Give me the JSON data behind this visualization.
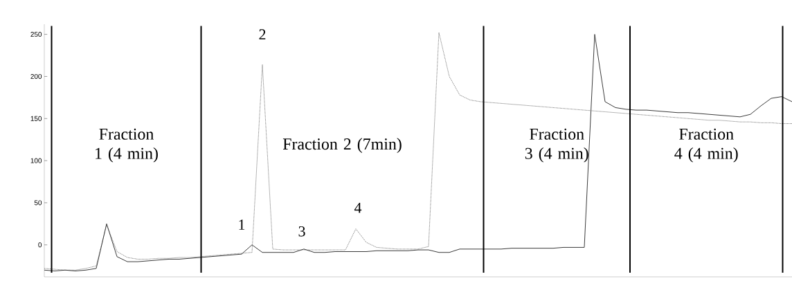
{
  "chart_data": {
    "type": "line",
    "categories": [
      null,
      null,
      null,
      null,
      null,
      null,
      null,
      null,
      null,
      null,
      null,
      null,
      null,
      null,
      null,
      null,
      null,
      null,
      null,
      null,
      null,
      null,
      null,
      null,
      null,
      null,
      null,
      null,
      null,
      null,
      null,
      null,
      null,
      null,
      null,
      null,
      null,
      null,
      null,
      null,
      null,
      null,
      null,
      null,
      null,
      null,
      null,
      null,
      null,
      null,
      null,
      null,
      null,
      null,
      null,
      null,
      null,
      null,
      null,
      null,
      null,
      null,
      null,
      null,
      null,
      null,
      null,
      null,
      null,
      null,
      null,
      null,
      null
    ],
    "series": [
      {
        "color": "#3a3a3a",
        "line_style": "solid",
        "values": [
          -30,
          -31,
          -30,
          -31,
          -30,
          -28,
          25,
          -14,
          -20,
          -20,
          -19,
          -18,
          -17,
          -17,
          -16,
          -15,
          -14,
          -13,
          -12,
          -11,
          0,
          -9,
          -9,
          -9,
          -9,
          -5,
          -9,
          -9,
          -8,
          -8,
          -8,
          -8,
          -7,
          -7,
          -7,
          -7,
          -6,
          -6,
          -9,
          -9,
          -5,
          -5,
          -5,
          -5,
          -5,
          -4,
          -4,
          -4,
          -4,
          -4,
          -3,
          -3,
          -3,
          250,
          170,
          163,
          161,
          160,
          160,
          159,
          158,
          157,
          157,
          156,
          155,
          154,
          153,
          152,
          155,
          165,
          174,
          176,
          170
        ]
      },
      {
        "color": "#6e6e6e",
        "line_style": "dotted",
        "values": [
          -28,
          -29,
          -30,
          -30,
          -28,
          -25,
          24,
          -8,
          -15,
          -17,
          -17,
          -16,
          -16,
          -15,
          -15,
          -14,
          -13,
          -12,
          -11,
          -10,
          -9,
          214,
          -5,
          -6,
          -6,
          -6,
          -6,
          -6,
          -6,
          -6,
          19,
          3,
          -3,
          -4,
          -5,
          -5,
          -5,
          -2,
          252,
          200,
          178,
          172,
          170,
          169,
          168,
          167,
          166,
          165,
          164,
          163,
          162,
          161,
          160,
          159,
          158,
          157,
          156,
          155,
          154,
          153,
          152,
          151,
          150,
          149,
          148,
          148,
          147,
          146,
          146,
          145,
          145,
          144,
          144
        ]
      }
    ],
    "ylim": [
      -38,
      262
    ],
    "yticks": [
      0,
      50,
      100,
      150,
      200,
      250
    ],
    "tick_labels": "y",
    "annotations": [
      "Fraction 1 (4 min)",
      "Fraction 2 (7min)",
      "Fraction 3 (4 min)",
      "Fraction 4 (4 min)",
      "1",
      "2",
      "3",
      "4"
    ]
  }
}
